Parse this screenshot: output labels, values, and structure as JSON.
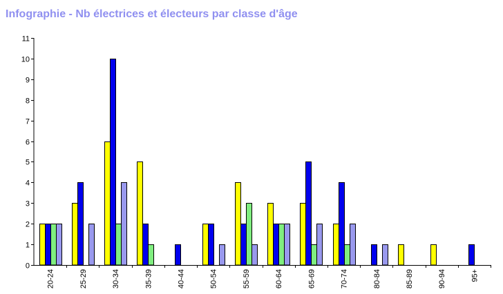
{
  "chart_data": {
    "type": "bar",
    "title": "Infographie - Nb électrices et électeurs par classe d'âge",
    "xlabel": "",
    "ylabel": "",
    "ylim": [
      0,
      11
    ],
    "yticks": [
      0,
      1,
      2,
      3,
      4,
      5,
      6,
      7,
      8,
      9,
      10,
      11
    ],
    "grid": false,
    "categories": [
      "20-24",
      "25-29",
      "30-34",
      "35-39",
      "40-44",
      "50-54",
      "55-59",
      "60-64",
      "65-69",
      "70-74",
      "80-84",
      "85-89",
      "90-94",
      "95+"
    ],
    "series": [
      {
        "color": "#ffff00",
        "values": [
          2,
          3,
          6,
          5,
          0,
          2,
          4,
          3,
          3,
          2,
          0,
          1,
          1,
          0
        ]
      },
      {
        "color": "#0000ee",
        "values": [
          2,
          4,
          10,
          2,
          1,
          2,
          2,
          2,
          5,
          4,
          1,
          0,
          0,
          1
        ]
      },
      {
        "color": "#80ee80",
        "values": [
          2,
          0,
          2,
          1,
          0,
          0,
          3,
          2,
          1,
          1,
          0,
          0,
          0,
          0
        ]
      },
      {
        "color": "#9999ee",
        "values": [
          2,
          2,
          4,
          0,
          0,
          1,
          1,
          2,
          2,
          2,
          1,
          0,
          0,
          0
        ]
      }
    ]
  }
}
